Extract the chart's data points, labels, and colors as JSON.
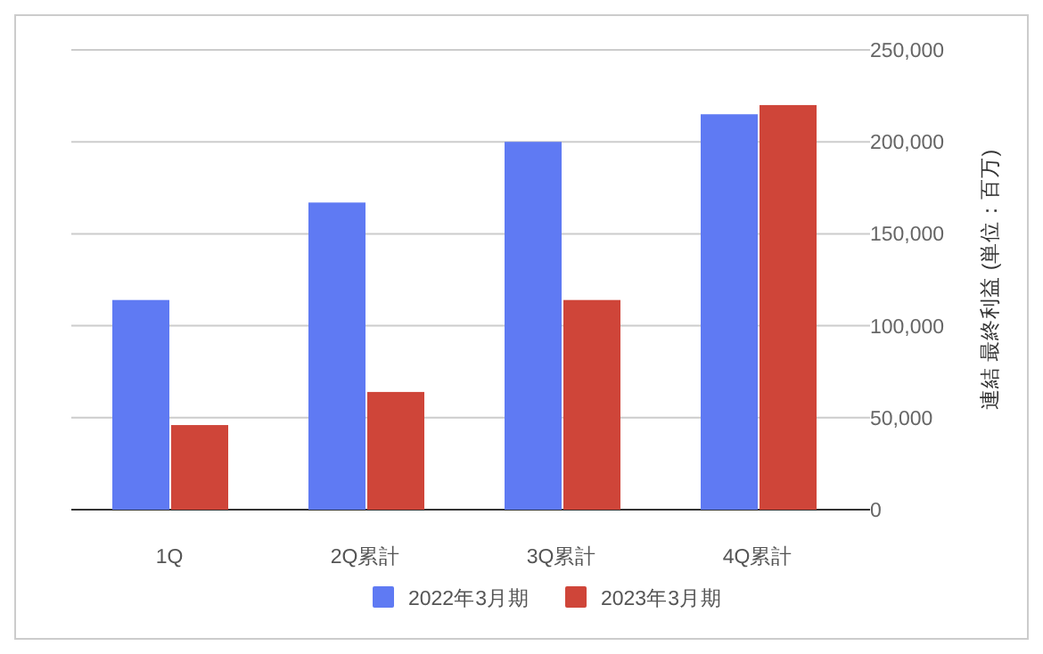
{
  "chart_data": {
    "type": "bar",
    "categories": [
      "1Q",
      "2Q累計",
      "3Q累計",
      "4Q累計"
    ],
    "series": [
      {
        "name": "2022年3月期",
        "color": "#5f7af3",
        "values": [
          114000,
          167000,
          200000,
          215000
        ]
      },
      {
        "name": "2023年3月期",
        "color": "#cf4539",
        "values": [
          46000,
          64000,
          114000,
          220000
        ]
      }
    ],
    "ylabel": "連結 最終利益 (単位：百万)",
    "ylim": [
      0,
      250000
    ],
    "yticks": [
      {
        "value": 0,
        "label": "0"
      },
      {
        "value": 50000,
        "label": "50,000"
      },
      {
        "value": 100000,
        "label": "100,000"
      },
      {
        "value": 150000,
        "label": "150,000"
      },
      {
        "value": 200000,
        "label": "200,000"
      },
      {
        "value": 250000,
        "label": "250,000"
      }
    ],
    "grid": true,
    "legend": "bottom"
  }
}
